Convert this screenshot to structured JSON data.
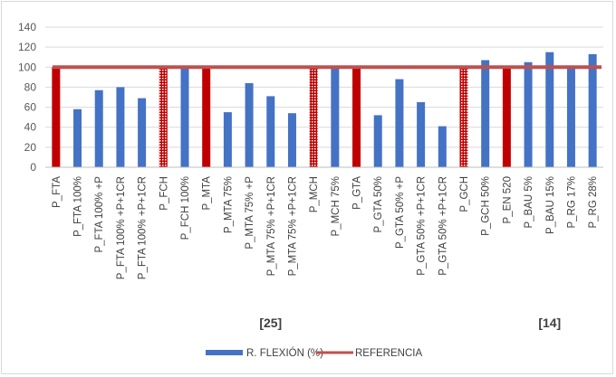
{
  "chart_data": {
    "type": "bar",
    "title": "",
    "xlabel": "",
    "ylabel": "",
    "ylim": [
      0,
      140
    ],
    "yticks": [
      0,
      20,
      40,
      60,
      80,
      100,
      120,
      140
    ],
    "grid": true,
    "legend_position": "bottom",
    "categories": [
      "P_FTA",
      "P_FTA 100%",
      "P_FTA 100% +P",
      "P_FTA 100% +P+1CR",
      "P_FTA 100% +P+1CR",
      "P_FCH",
      "P_FCH 100%",
      "P_MTA",
      "P_MTA 75%",
      "P_MTA 75% +P",
      "P_MTA 75% +P+1CR",
      "P_MTA 75% +P+1CR",
      "P_MCH",
      "P_MCH 75%",
      "P_GTA",
      "P_GTA 50%",
      "P_GTA 50% +P",
      "P_GTA 50% +P+1CR",
      "P_GTA 50% +P+1CR",
      "P_GCH",
      "P_GCH 50%",
      "P_EN 520",
      "P_BAU 5%",
      "P_BAU 15%",
      "P_RG 17%",
      "P_RG 28%"
    ],
    "series": [
      {
        "name": "R. FLEXIÓN (%)",
        "color": "#4472c4",
        "values": [
          100,
          58,
          77,
          80,
          69,
          100,
          100,
          100,
          55,
          84,
          71,
          54,
          100,
          100,
          100,
          52,
          88,
          65,
          41,
          100,
          107,
          100,
          105,
          115,
          100,
          113
        ]
      },
      {
        "name": "REFERENCIA",
        "color": "#c0504d",
        "type": "line",
        "value": 100
      }
    ],
    "reference_bar_style": {
      "0": "solid",
      "5": "hatched",
      "7": "solid",
      "12": "hatched",
      "14": "solid",
      "19": "hatched",
      "21": "solid"
    },
    "group_labels": [
      {
        "text": "[25]",
        "under": [
          0,
          20
        ]
      },
      {
        "text": "[14]",
        "under": [
          21,
          25
        ]
      }
    ],
    "colors": {
      "bar": "#4472c4",
      "reference": "#c0504d",
      "reference_bar": "#c00000",
      "grid": "#d9d9d9"
    }
  }
}
